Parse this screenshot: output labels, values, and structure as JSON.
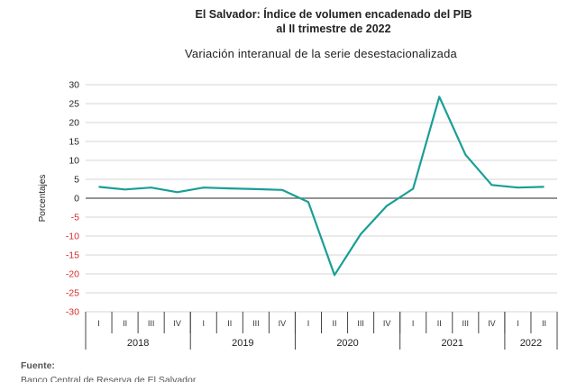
{
  "chart_data": {
    "type": "line",
    "title": [
      "El Salvador: Índice de volumen encadenado del PIB",
      "al II trimestre de 2022"
    ],
    "subtitle": "Variación interanual de la serie desestacionalizada",
    "ylabel": "Porcentajes",
    "xlabel": "",
    "ylim": [
      -30,
      30
    ],
    "yticks": [
      30,
      25,
      20,
      15,
      10,
      5,
      0,
      -5,
      -10,
      -15,
      -20,
      -25,
      -30
    ],
    "grid": true,
    "legend": "none",
    "color": "#1a9e96",
    "x": [
      "I",
      "II",
      "III",
      "IV",
      "I",
      "II",
      "III",
      "IV",
      "I",
      "II",
      "III",
      "IV",
      "I",
      "II",
      "III",
      "IV",
      "I",
      "II"
    ],
    "years": [
      {
        "label": "2018",
        "count": 4
      },
      {
        "label": "2019",
        "count": 4
      },
      {
        "label": "2020",
        "count": 4
      },
      {
        "label": "2021",
        "count": 4
      },
      {
        "label": "2022",
        "count": 2
      }
    ],
    "series": [
      {
        "values": [
          3.0,
          2.3,
          2.8,
          1.6,
          2.8,
          2.6,
          2.4,
          2.2,
          -1.0,
          -20.3,
          -9.5,
          -2.0,
          2.5,
          26.8,
          11.5,
          3.5,
          2.8,
          3.0
        ]
      }
    ]
  },
  "source": {
    "label": "Fuente:",
    "text": "Banco Central de Reserva de El Salvador"
  }
}
